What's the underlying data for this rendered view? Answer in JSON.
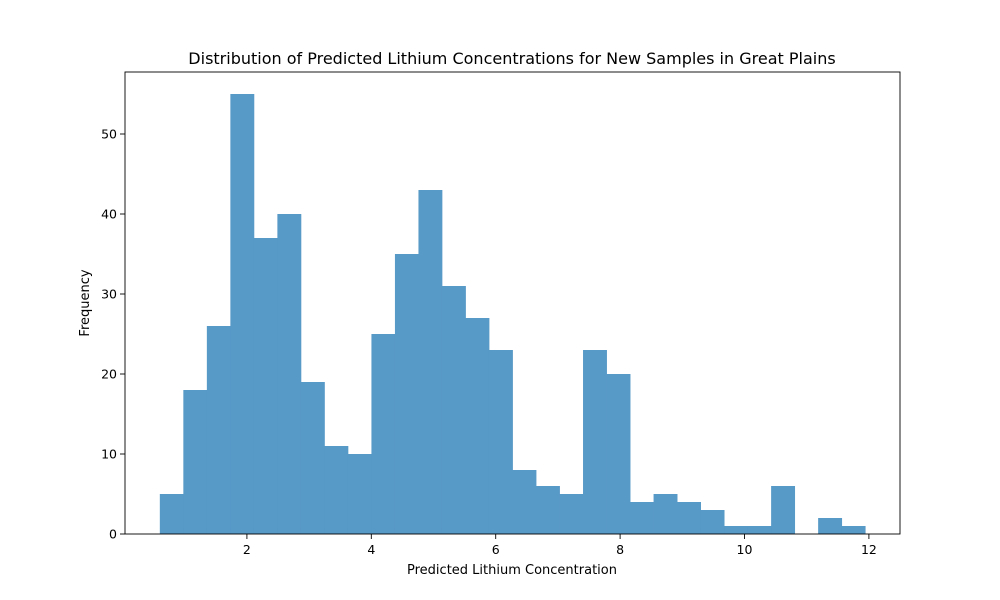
{
  "chart_data": {
    "type": "bar",
    "subtype": "histogram",
    "title": "Distribution of Predicted Lithium Concentrations for New Samples in Great Plains",
    "xlabel": "Predicted Lithium Concentration",
    "ylabel": "Frequency",
    "xlim": [
      0.04,
      12.5
    ],
    "ylim": [
      0,
      57.75
    ],
    "xticks": [
      2,
      4,
      6,
      8,
      10,
      12
    ],
    "yticks": [
      0,
      10,
      20,
      30,
      40,
      50
    ],
    "bin_start": 0.6,
    "bin_width": 0.378,
    "counts": [
      5,
      18,
      26,
      55,
      37,
      40,
      19,
      11,
      10,
      25,
      35,
      43,
      31,
      27,
      23,
      8,
      6,
      5,
      23,
      20,
      4,
      5,
      4,
      3,
      1,
      1,
      6,
      0,
      2,
      1
    ],
    "bar_color": "#5799c7",
    "grid": false,
    "legend": "none"
  }
}
